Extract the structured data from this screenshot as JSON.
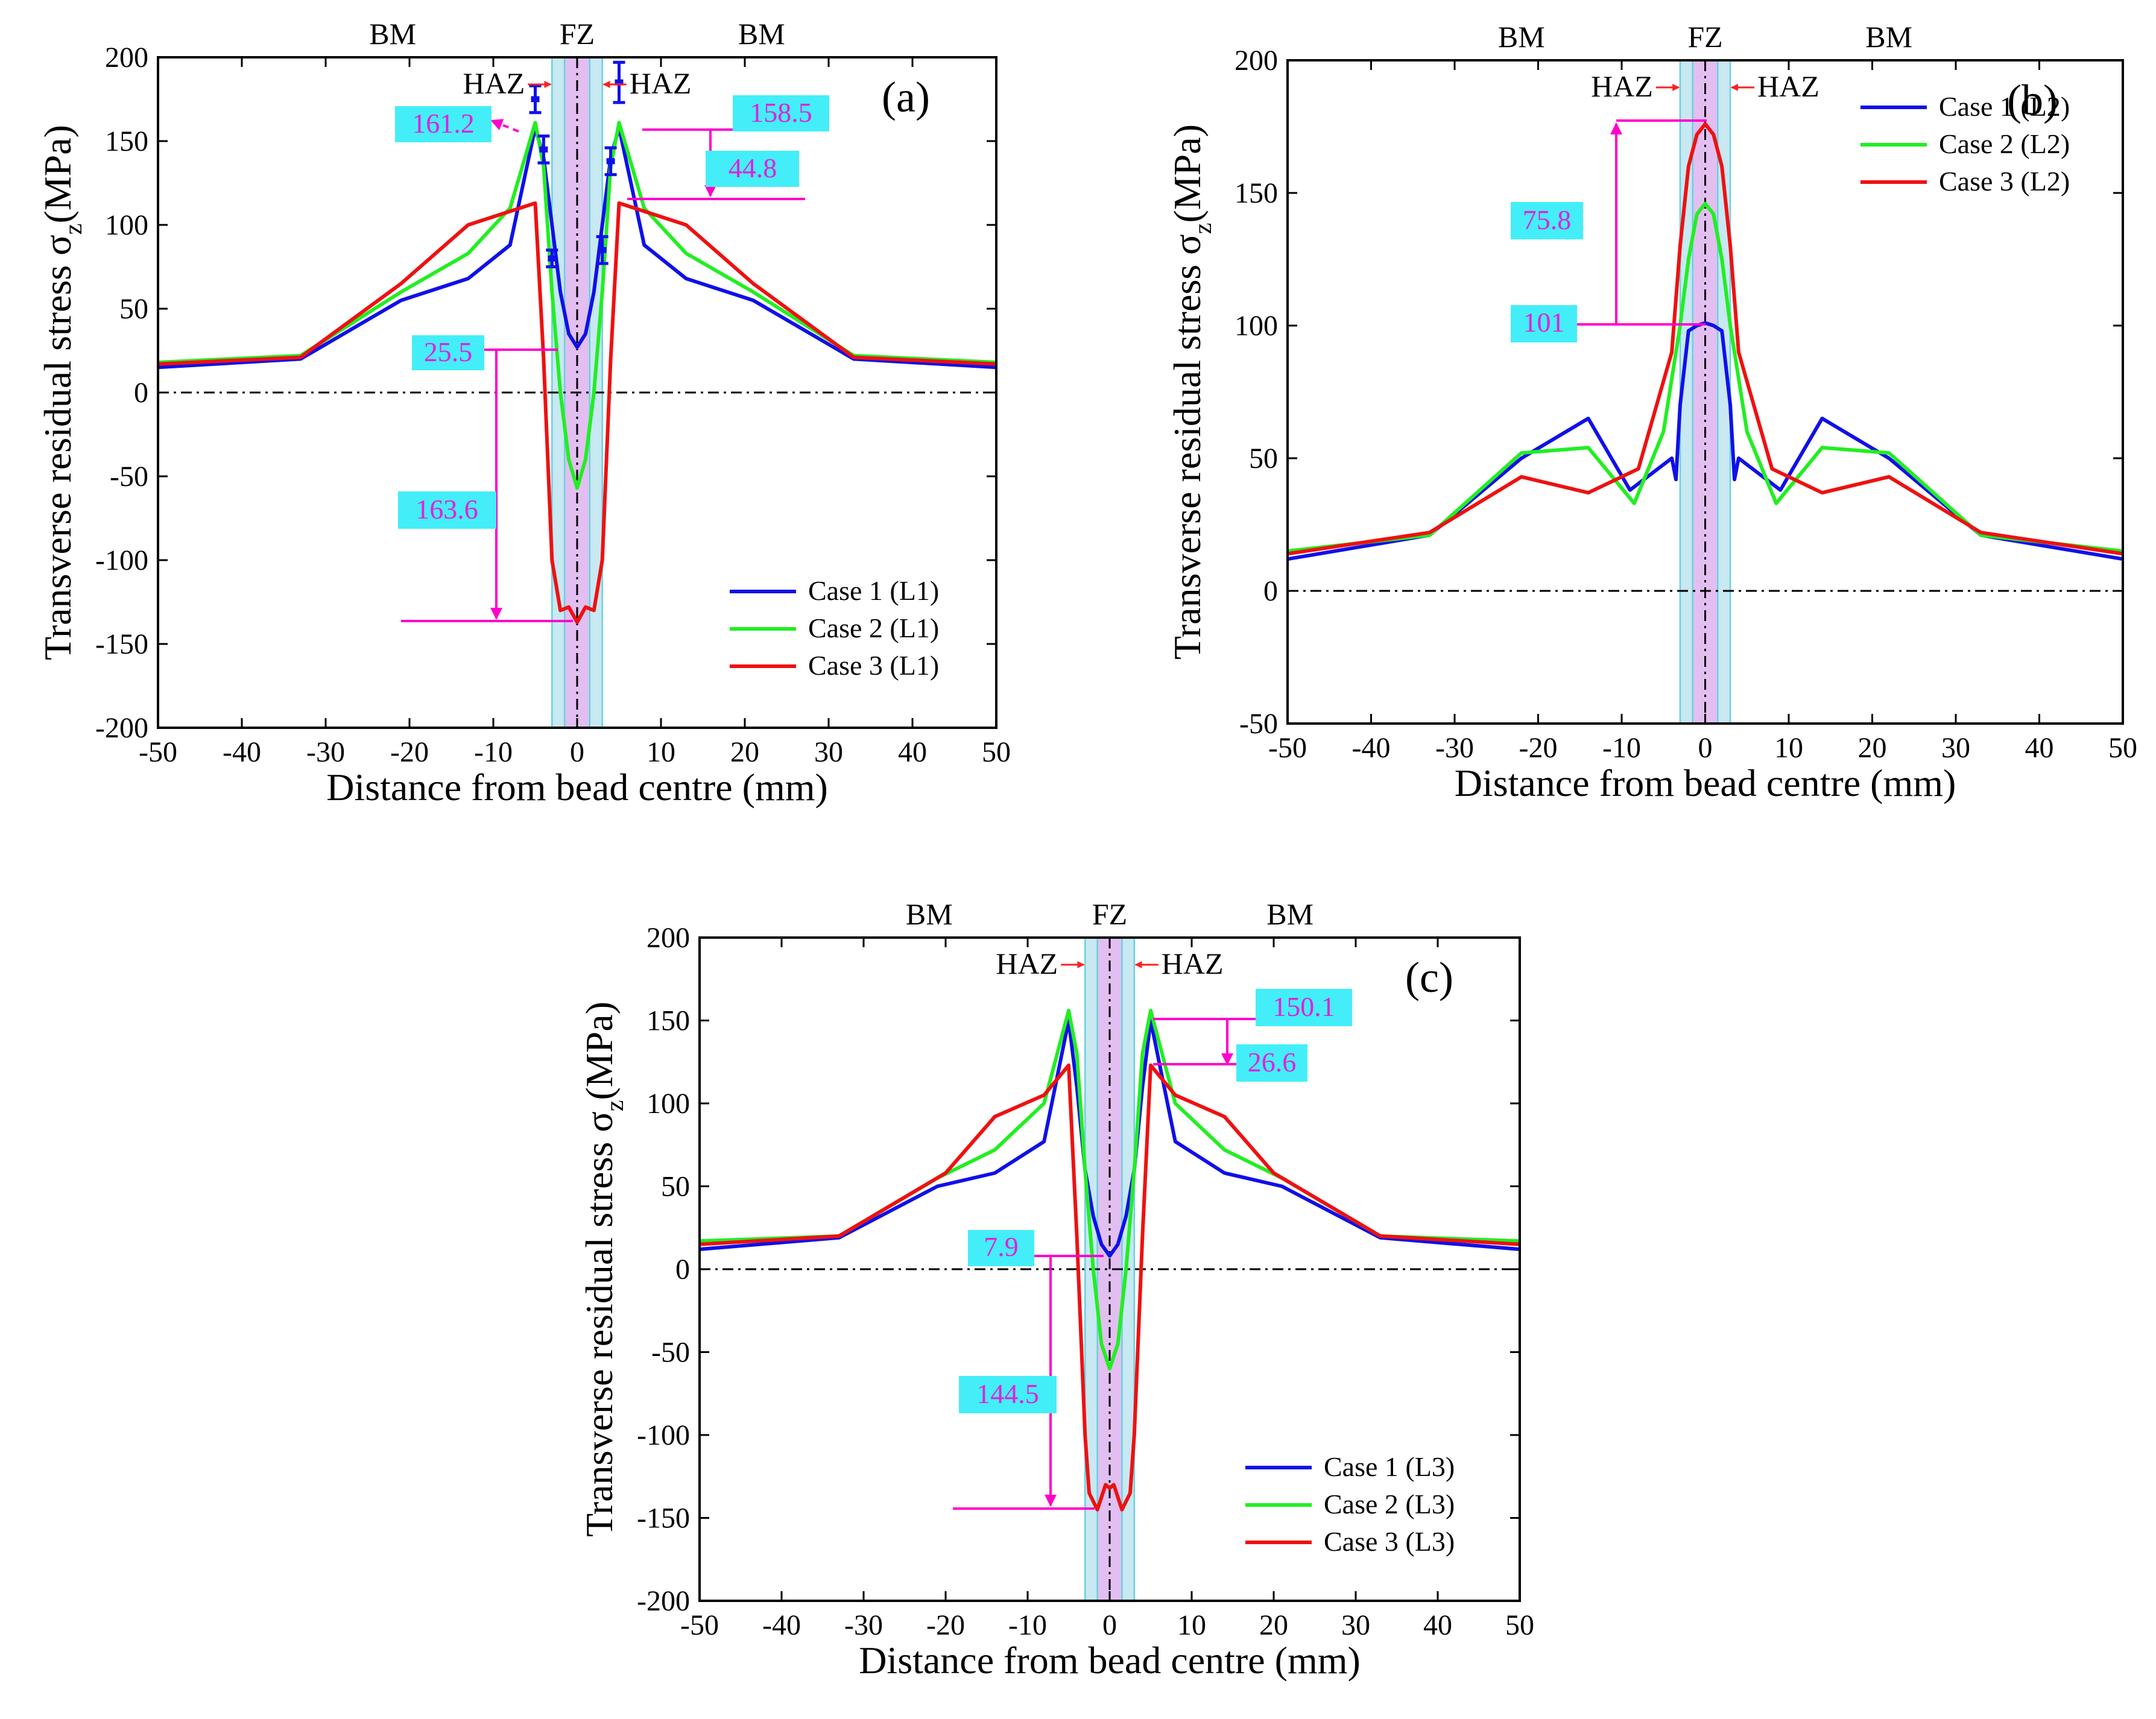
{
  "colors": {
    "case1": "#1010e8",
    "case2": "#22ee22",
    "case3": "#ee1111",
    "fz_fill": "#e2bff0",
    "haz_fill": "#c8e8f2",
    "haz_line": "#6ad0e0",
    "anno_line": "#ff00cc",
    "anno_box": "#44eef8",
    "anno_text": "#e020e0",
    "arrow_red": "#ff2020"
  },
  "chart_data": [
    {
      "id": "a",
      "type": "line",
      "panel_label": "(a)",
      "xlabel": "Distance from bead centre (mm)",
      "ylabel_main": "Transverse residual stress σ",
      "ylabel_sub": "z",
      "ylabel_end": "(MPa)",
      "xlim": [
        -50,
        50
      ],
      "ylim": [
        -200,
        200
      ],
      "xticks": [
        -50,
        -40,
        -30,
        -20,
        -10,
        0,
        10,
        20,
        30,
        40,
        50
      ],
      "yticks": [
        -200,
        -150,
        -100,
        -50,
        0,
        50,
        100,
        150,
        200
      ],
      "zone_labels": {
        "left": "BM",
        "center": "FZ",
        "right": "BM",
        "haz_left": "HAZ",
        "haz_right": "HAZ"
      },
      "fz_range": [
        -1.5,
        1.5
      ],
      "haz_range": [
        -3,
        3
      ],
      "legend": {
        "position": "bottom-right",
        "entries": [
          "Case 1 (L1)",
          "Case 2 (L1)",
          "Case 3 (L1)"
        ]
      },
      "series": [
        {
          "name": "Case 1 (L1)",
          "color_key": "case1",
          "x": [
            -50,
            -33,
            -21,
            -13,
            -8,
            -5,
            -4,
            -3,
            -2,
            -1,
            0,
            1,
            2,
            3,
            4,
            5,
            8,
            13,
            21,
            33,
            50
          ],
          "y": [
            15,
            20,
            55,
            68,
            88,
            158,
            140,
            100,
            60,
            35,
            27,
            35,
            60,
            100,
            140,
            158,
            88,
            68,
            55,
            20,
            15
          ]
        },
        {
          "name": "Case 2 (L1)",
          "color_key": "case2",
          "x": [
            -50,
            -33,
            -21,
            -13,
            -8,
            -5,
            -4,
            -3,
            -2,
            -1,
            0,
            1,
            2,
            3,
            4,
            5,
            8,
            13,
            21,
            33,
            50
          ],
          "y": [
            18,
            22,
            60,
            83,
            110,
            161,
            135,
            60,
            0,
            -40,
            -57,
            -40,
            0,
            60,
            135,
            161,
            110,
            83,
            60,
            22,
            18
          ]
        },
        {
          "name": "Case 3 (L1)",
          "color_key": "case3",
          "x": [
            -50,
            -33,
            -21,
            -13,
            -5,
            -4,
            -3,
            -2,
            -1,
            0,
            1,
            2,
            3,
            4,
            5,
            13,
            21,
            33,
            50
          ],
          "y": [
            17,
            21,
            65,
            100,
            113,
            20,
            -100,
            -130,
            -128,
            -137,
            -128,
            -130,
            -100,
            20,
            113,
            100,
            65,
            21,
            17
          ]
        }
      ],
      "error_bars": [
        {
          "x": -5,
          "y": 175,
          "err": 8
        },
        {
          "x": -4,
          "y": 145,
          "err": 8
        },
        {
          "x": -3,
          "y": 80,
          "err": 5
        },
        {
          "x": 3,
          "y": 85,
          "err": 8
        },
        {
          "x": 4,
          "y": 138,
          "err": 8
        },
        {
          "x": 5,
          "y": 185,
          "err": 12
        }
      ],
      "annotations": [
        {
          "label": "161.2"
        },
        {
          "label": "158.5"
        },
        {
          "label": "44.8"
        },
        {
          "label": "25.5"
        },
        {
          "label": "163.6"
        }
      ]
    },
    {
      "id": "b",
      "type": "line",
      "panel_label": "(b)",
      "xlabel": "Distance from bead centre (mm)",
      "ylabel_main": "Transverse residual stress σ",
      "ylabel_sub": "z",
      "ylabel_end": "(MPa)",
      "xlim": [
        -50,
        50
      ],
      "ylim": [
        -50,
        200
      ],
      "xticks": [
        -50,
        -40,
        -30,
        -20,
        -10,
        0,
        10,
        20,
        30,
        40,
        50
      ],
      "yticks": [
        -50,
        0,
        50,
        100,
        150,
        200
      ],
      "zone_labels": {
        "left": "BM",
        "center": "FZ",
        "right": "BM",
        "haz_left": "HAZ",
        "haz_right": "HAZ"
      },
      "fz_range": [
        -1.5,
        1.5
      ],
      "haz_range": [
        -3,
        3
      ],
      "legend": {
        "position": "top-right",
        "entries": [
          "Case 1 (L2)",
          "Case 2 (L2)",
          "Case 3 (L2)"
        ]
      },
      "series": [
        {
          "name": "Case 1 (L2)",
          "color_key": "case1",
          "x": [
            -50,
            -33,
            -22,
            -14,
            -9,
            -4,
            -3.5,
            -3,
            -2,
            -1,
            0,
            1,
            2,
            3,
            3.5,
            4,
            9,
            14,
            22,
            33,
            50
          ],
          "y": [
            12,
            21,
            50,
            65,
            38,
            50,
            42,
            70,
            98,
            100,
            101,
            100,
            98,
            70,
            42,
            50,
            38,
            65,
            50,
            21,
            12
          ]
        },
        {
          "name": "Case 2 (L2)",
          "color_key": "case2",
          "x": [
            -50,
            -33,
            -22,
            -14,
            -8.5,
            -5,
            -3,
            -2,
            -1,
            0,
            1,
            2,
            3,
            5,
            8.5,
            14,
            22,
            33,
            50
          ],
          "y": [
            15,
            21,
            52,
            54,
            33,
            60,
            100,
            125,
            142,
            146,
            142,
            125,
            100,
            60,
            33,
            54,
            52,
            21,
            15
          ]
        },
        {
          "name": "Case 3 (L2)",
          "color_key": "case3",
          "x": [
            -50,
            -33,
            -22,
            -14,
            -8,
            -4,
            -3,
            -2,
            -1,
            0,
            1,
            2,
            3,
            4,
            8,
            14,
            22,
            33,
            50
          ],
          "y": [
            14,
            22,
            43,
            37,
            46,
            90,
            130,
            160,
            172,
            176,
            172,
            160,
            130,
            90,
            46,
            37,
            43,
            22,
            14
          ]
        }
      ],
      "annotations": [
        {
          "label": "75.8"
        },
        {
          "label": "101"
        }
      ]
    },
    {
      "id": "c",
      "type": "line",
      "panel_label": "(c)",
      "xlabel": "Distance from bead centre (mm)",
      "ylabel_main": "Transverse residual stress σ",
      "ylabel_sub": "z",
      "ylabel_end": "(MPa)",
      "xlim": [
        -50,
        50
      ],
      "ylim": [
        -200,
        200
      ],
      "xticks": [
        -50,
        -40,
        -30,
        -20,
        -10,
        0,
        10,
        20,
        30,
        40,
        50
      ],
      "yticks": [
        -200,
        -150,
        -100,
        -50,
        0,
        50,
        100,
        150,
        200
      ],
      "zone_labels": {
        "left": "BM",
        "center": "FZ",
        "right": "BM",
        "haz_left": "HAZ",
        "haz_right": "HAZ"
      },
      "fz_range": [
        -1.5,
        1.5
      ],
      "haz_range": [
        -3,
        3
      ],
      "legend": {
        "position": "bottom-right",
        "entries": [
          "Case 1 (L3)",
          "Case 2 (L3)",
          "Case 3 (L3)"
        ]
      },
      "series": [
        {
          "name": "Case 1 (L3)",
          "color_key": "case1",
          "x": [
            -50,
            -33,
            -21,
            -14,
            -8,
            -5,
            -4,
            -3,
            -2,
            -1,
            0,
            1,
            2,
            3,
            4,
            5,
            8,
            14,
            21,
            33,
            50
          ],
          "y": [
            12,
            19,
            50,
            58,
            77,
            150,
            110,
            60,
            32,
            15,
            8,
            15,
            32,
            60,
            110,
            150,
            77,
            58,
            50,
            19,
            12
          ]
        },
        {
          "name": "Case 2 (L3)",
          "color_key": "case2",
          "x": [
            -50,
            -33,
            -21,
            -14,
            -8,
            -5,
            -4,
            -3,
            -2,
            -1,
            0,
            1,
            2,
            3,
            4,
            5,
            8,
            14,
            21,
            33,
            50
          ],
          "y": [
            17,
            20,
            55,
            72,
            100,
            156,
            130,
            60,
            0,
            -45,
            -60,
            -45,
            0,
            60,
            130,
            156,
            100,
            72,
            55,
            20,
            17
          ]
        },
        {
          "name": "Case 3 (L3)",
          "color_key": "case3",
          "x": [
            -50,
            -33,
            -20,
            -14,
            -8,
            -5,
            -4,
            -3,
            -2.5,
            -1.5,
            -0.5,
            0,
            0.5,
            1.5,
            2.5,
            3,
            4,
            5,
            8,
            14,
            20,
            33,
            50
          ],
          "y": [
            15,
            20,
            58,
            92,
            105,
            123,
            20,
            -100,
            -135,
            -145,
            -130,
            -132,
            -130,
            -145,
            -135,
            -100,
            20,
            123,
            105,
            92,
            58,
            20,
            15
          ]
        }
      ],
      "annotations": [
        {
          "label": "150.1"
        },
        {
          "label": "26.6"
        },
        {
          "label": "7.9"
        },
        {
          "label": "144.5"
        }
      ]
    }
  ]
}
